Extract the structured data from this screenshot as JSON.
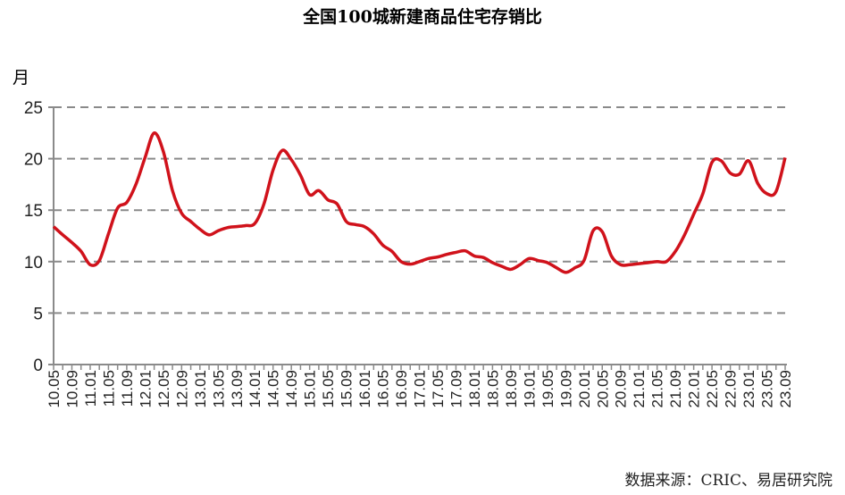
{
  "chart_data": {
    "type": "line",
    "title": "全国100城新建商品住宅存销比",
    "ylabel": "月",
    "xlabel": "",
    "ylim": [
      0,
      25
    ],
    "yticks": [
      0,
      5,
      10,
      15,
      20,
      25
    ],
    "grid": "horizontal dashed",
    "legend": "none",
    "line_color": "#d0121b",
    "x": [
      "10.05",
      "10.07",
      "10.09",
      "10.11",
      "11.01",
      "11.03",
      "11.05",
      "11.07",
      "11.09",
      "11.11",
      "12.01",
      "12.03",
      "12.05",
      "12.07",
      "12.09",
      "12.11",
      "13.01",
      "13.03",
      "13.05",
      "13.07",
      "13.09",
      "13.11",
      "14.01",
      "14.03",
      "14.05",
      "14.07",
      "14.09",
      "14.11",
      "15.01",
      "15.03",
      "15.05",
      "15.07",
      "15.09",
      "15.11",
      "16.01",
      "16.03",
      "16.05",
      "16.07",
      "16.09",
      "16.11",
      "17.01",
      "17.03",
      "17.05",
      "17.07",
      "17.09",
      "17.11",
      "18.01",
      "18.03",
      "18.05",
      "18.07",
      "18.09",
      "18.11",
      "19.01",
      "19.03",
      "19.05",
      "19.07",
      "19.09",
      "19.11",
      "20.01",
      "20.03",
      "20.05",
      "20.07",
      "20.09",
      "20.11",
      "21.01",
      "21.03",
      "21.05",
      "21.07",
      "21.09",
      "21.11",
      "22.01",
      "22.03",
      "22.05",
      "22.07",
      "22.09",
      "22.11",
      "23.01",
      "23.03",
      "23.05",
      "23.07",
      "23.09"
    ],
    "values": [
      13.4,
      12.6,
      11.85,
      11.0,
      9.7,
      10.1,
      12.7,
      15.2,
      15.75,
      17.5,
      20.1,
      22.5,
      20.7,
      16.9,
      14.7,
      13.9,
      13.15,
      12.6,
      13.0,
      13.3,
      13.4,
      13.5,
      13.7,
      15.6,
      18.9,
      20.8,
      19.9,
      18.4,
      16.5,
      16.9,
      16.0,
      15.6,
      13.9,
      13.6,
      13.4,
      12.7,
      11.6,
      11.0,
      10.0,
      9.75,
      10.0,
      10.3,
      10.45,
      10.7,
      10.9,
      11.05,
      10.55,
      10.4,
      9.9,
      9.55,
      9.25,
      9.7,
      10.3,
      10.1,
      9.9,
      9.4,
      8.95,
      9.4,
      10.1,
      13.0,
      12.9,
      10.55,
      9.7,
      9.7,
      9.8,
      9.9,
      10.0,
      10.0,
      11.0,
      12.6,
      14.6,
      16.6,
      19.65,
      19.8,
      18.6,
      18.5,
      19.8,
      17.6,
      16.6,
      16.8,
      20.1
    ],
    "xtick_labels": [
      "10.05",
      "10.09",
      "11.01",
      "11.05",
      "11.09",
      "12.01",
      "12.05",
      "12.09",
      "13.01",
      "13.05",
      "13.09",
      "14.01",
      "14.05",
      "14.09",
      "15.01",
      "15.05",
      "15.09",
      "16.01",
      "16.05",
      "16.09",
      "17.01",
      "17.05",
      "17.09",
      "18.01",
      "18.05",
      "18.09",
      "19.01",
      "19.05",
      "19.09",
      "20.01",
      "20.05",
      "20.09",
      "21.01",
      "21.05",
      "21.09",
      "22.01",
      "22.05",
      "22.09",
      "23.01",
      "23.05",
      "23.09"
    ],
    "source": "数据来源：CRIC、易居研究院"
  }
}
